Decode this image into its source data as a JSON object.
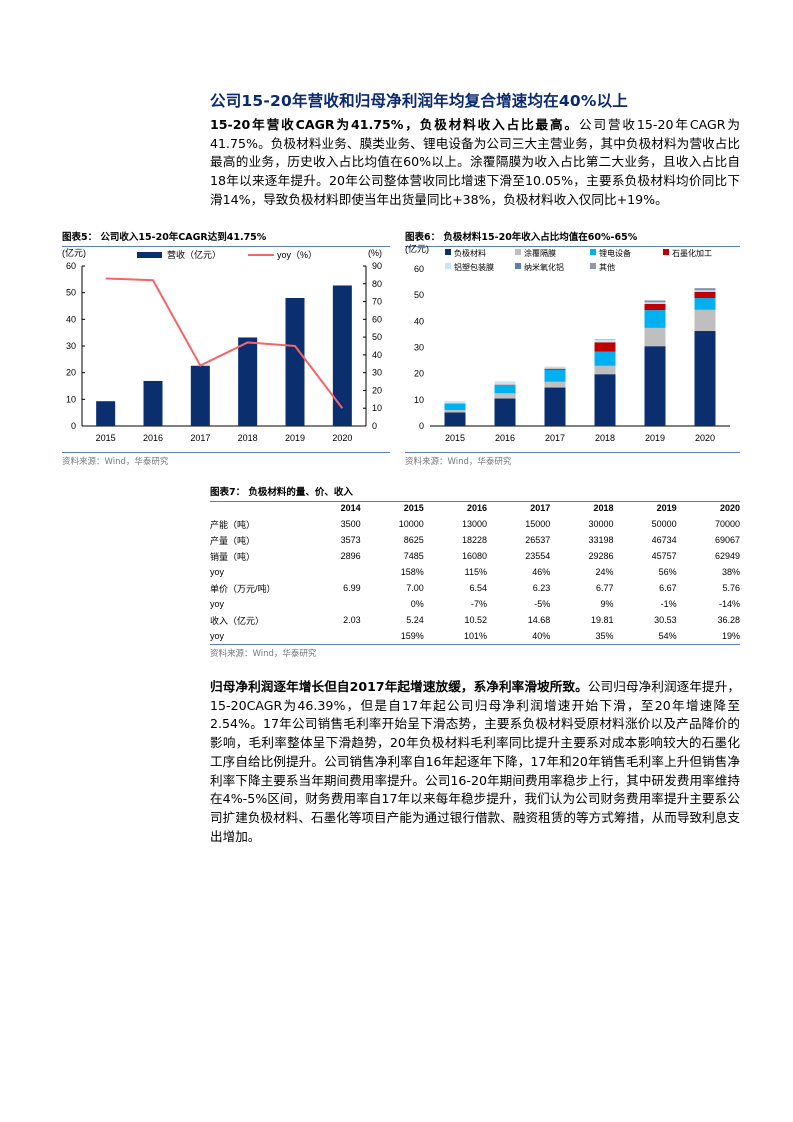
{
  "heading": "公司15-20年营收和归母净利润年均复合增速均在40%以上",
  "para1": {
    "bold": "15-20年营收CAGR为41.75%，负极材料收入占比最高。",
    "text": "公司营收15-20年CAGR为41.75%。负极材料业务、膜类业务、锂电设备为公司三大主营业务，其中负极材料为营收占比最高的业务，历史收入占比均值在60%以上。涂覆隔膜为收入占比第二大业务，且收入占比自18年以来逐年提升。20年公司整体营收同比增速下滑至10.05%，主要系负极材料均价同比下滑14%，导致负极材料即使当年出货量同比+38%，负极材料收入仅同比+19%。"
  },
  "fig5": {
    "title": "图表5：  公司收入15-20年CAGR达到41.75%",
    "source": "资料来源：Wind，华泰研究"
  },
  "fig6": {
    "title": "图表6：  负极材料15-20年收入占比均值在60%-65%",
    "source": "资料来源：Wind，华泰研究"
  },
  "fig7": {
    "title": "图表7：  负极材料的量、价、收入",
    "source": "资料来源：Wind，华泰研究",
    "headers": [
      "",
      "2014",
      "2015",
      "2016",
      "2017",
      "2018",
      "2019",
      "2020"
    ],
    "rows": [
      [
        "产能（吨）",
        "3500",
        "10000",
        "13000",
        "15000",
        "30000",
        "50000",
        "70000"
      ],
      [
        "产量（吨）",
        "3573",
        "8625",
        "18228",
        "26537",
        "33198",
        "46734",
        "69067"
      ],
      [
        "销量（吨）",
        "2896",
        "7485",
        "16080",
        "23554",
        "29286",
        "45757",
        "62949"
      ],
      [
        "yoy",
        "",
        "158%",
        "115%",
        "46%",
        "24%",
        "56%",
        "38%"
      ],
      [
        "单价（万元/吨）",
        "6.99",
        "7.00",
        "6.54",
        "6.23",
        "6.77",
        "6.67",
        "5.76"
      ],
      [
        "yoy",
        "",
        "0%",
        "-7%",
        "-5%",
        "9%",
        "-1%",
        "-14%"
      ],
      [
        "收入（亿元）",
        "2.03",
        "5.24",
        "10.52",
        "14.68",
        "19.81",
        "30.53",
        "36.28"
      ],
      [
        "yoy",
        "",
        "159%",
        "101%",
        "40%",
        "35%",
        "54%",
        "19%"
      ]
    ]
  },
  "para2": {
    "bold": "归母净利润逐年增长但自2017年起增速放缓，系净利率滑坡所致。",
    "text": "公司归母净利润逐年提升，15-20CAGR为46.39%，但是自17年起公司归母净利润增速开始下滑，至20年增速降至2.54%。17年公司销售毛利率开始呈下滑态势，主要系负极材料受原材料涨价以及产品降价的影响，毛利率整体呈下滑趋势，20年负极材料毛利率同比提升主要系对成本影响较大的石墨化工序自给比例提升。公司销售净利率自16年起逐年下降，17年和20年销售毛利率上升但销售净利率下降主要系当年期间费用率提升。公司16-20年期间费用率稳步上行，其中研发费用率维持在4%-5%区间，财务费用率自17年以来每年稳步提升，我们认为公司财务费用率提升主要系公司扩建负极材料、石墨化等项目产能为通过银行借款、融资租赁的等方式筹措，从而导致利息支出增加。"
  },
  "chart_data": [
    {
      "type": "bar+line",
      "categories": [
        "2015",
        "2016",
        "2017",
        "2018",
        "2019",
        "2020"
      ],
      "series": [
        {
          "name": "营收（亿元）",
          "type": "bar",
          "axis": "left",
          "color": "#0b2f6e",
          "values": [
            9.3,
            16.9,
            22.6,
            33.2,
            48.0,
            52.7
          ]
        },
        {
          "name": "yoy（%）",
          "type": "line",
          "axis": "right",
          "color": "#f4646a",
          "values": [
            83,
            82,
            34,
            47,
            45,
            10
          ]
        }
      ],
      "left_unit": "(亿元)",
      "right_unit": "(%)",
      "ylim": [
        0,
        60
      ],
      "yticks": [
        0,
        10,
        20,
        30,
        40,
        50,
        60
      ],
      "y2lim": [
        0,
        90
      ],
      "y2ticks": [
        0,
        10,
        20,
        30,
        40,
        50,
        60,
        70,
        80,
        90
      ],
      "legend": "top"
    },
    {
      "type": "stacked-bar",
      "categories": [
        "2015",
        "2016",
        "2017",
        "2018",
        "2019",
        "2020"
      ],
      "left_unit": "(亿元)",
      "ylim": [
        0,
        60
      ],
      "yticks": [
        0,
        10,
        20,
        30,
        40,
        50,
        60
      ],
      "legend": "top",
      "series": [
        {
          "name": "负极材料",
          "color": "#0b2f6e",
          "values": [
            5.2,
            10.5,
            14.7,
            19.8,
            30.5,
            36.3
          ]
        },
        {
          "name": "涂覆隔膜",
          "color": "#bfbfbf",
          "values": [
            0.9,
            2.0,
            2.2,
            3.2,
            7.0,
            8.1
          ]
        },
        {
          "name": "锂电设备",
          "color": "#00b0f0",
          "values": [
            2.5,
            3.2,
            4.6,
            5.4,
            6.8,
            4.5
          ]
        },
        {
          "name": "石墨化加工",
          "color": "#c00000",
          "values": [
            0,
            0.1,
            0.4,
            3.6,
            2.4,
            2.4
          ]
        },
        {
          "name": "铝塑包装膜",
          "color": "#c5e8f7",
          "values": [
            0.6,
            1.0,
            0.6,
            1.0,
            0.6,
            0.6
          ]
        },
        {
          "name": "纳米氧化铝",
          "color": "#5b7fb5",
          "values": [
            0,
            0,
            0,
            0.1,
            0.3,
            0.3
          ]
        },
        {
          "name": "其他",
          "color": "#8e99ab",
          "values": [
            0.1,
            0.1,
            0.1,
            0.1,
            0.4,
            0.5
          ]
        }
      ]
    }
  ]
}
